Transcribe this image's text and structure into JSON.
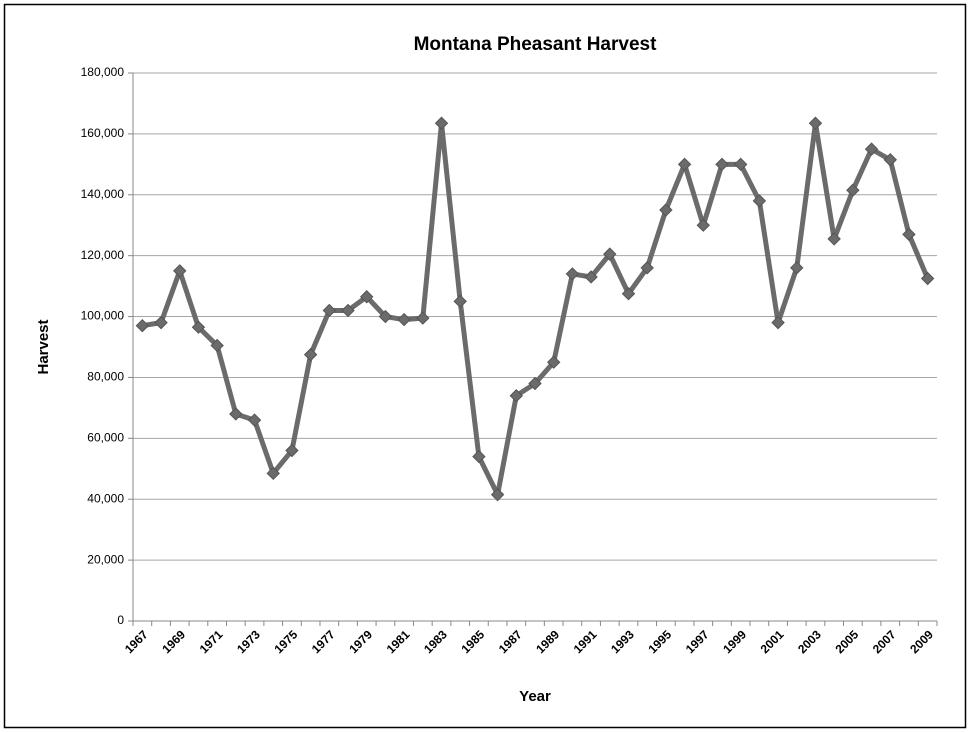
{
  "chart_data": {
    "type": "line",
    "title": "Montana Pheasant Harvest",
    "x_label": "Year",
    "y_label": "Harvest",
    "categories": [
      "1967",
      null,
      "1969",
      null,
      "1971",
      null,
      "1973",
      null,
      "1975",
      null,
      "1977",
      null,
      "1979",
      null,
      "1981",
      null,
      "1983",
      null,
      "1985",
      null,
      "1987",
      null,
      "1989",
      null,
      "1991",
      null,
      "1993",
      null,
      "1995",
      null,
      "1997",
      null,
      "1999",
      null,
      "2001",
      null,
      "2003",
      null,
      "2005",
      null,
      "2007",
      null,
      "2009"
    ],
    "series": [
      {
        "name": "Harvest",
        "color": "#6b6b6b",
        "values": [
          97000,
          98000,
          115000,
          96500,
          90500,
          68000,
          66000,
          48500,
          56000,
          87500,
          102000,
          102000,
          106500,
          100000,
          99000,
          99500,
          163500,
          105000,
          54000,
          41500,
          74000,
          78000,
          85000,
          114000,
          113000,
          120500,
          107500,
          116000,
          135000,
          150000,
          130000,
          150000,
          150000,
          138000,
          98000,
          116000,
          163500,
          125500,
          141500,
          155000,
          151500,
          127000,
          112500
        ]
      }
    ],
    "ylim": [
      0,
      180000
    ],
    "yticks": [
      0,
      {
        "value": 20000,
        "label": "20,000"
      },
      {
        "value": 40000,
        "label": "40,000"
      },
      {
        "value": 60000,
        "label": "60,000"
      },
      {
        "value": 80000,
        "label": "80,000"
      },
      {
        "value": 100000,
        "label": "100,000"
      },
      {
        "value": 120000,
        "label": "120,000"
      },
      {
        "value": 140000,
        "label": "140,000"
      },
      {
        "value": 160000,
        "label": "160,000"
      },
      {
        "value": 180000,
        "label": "180,000"
      }
    ],
    "grid": true
  }
}
